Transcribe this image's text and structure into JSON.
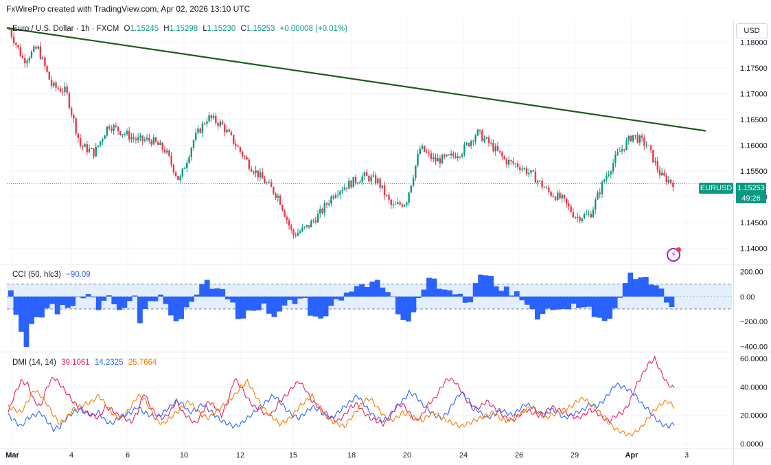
{
  "header": {
    "text": "FxWirePro created with TradingView.com, Apr 02, 2026 13:10 UTC"
  },
  "currency_button": "USD",
  "colors": {
    "up": "#089981",
    "down": "#f23645",
    "trendline": "#1e5a1e",
    "cci": "#2962ff",
    "cci_band": "#e3effd",
    "dmi_plus": "#e91e63",
    "dmi_minus": "#2962ff",
    "adx": "#f57c00",
    "badge": "#089981"
  },
  "main_legend": {
    "symbol": "Euro / U.S. Dollar · 1h · FXCM",
    "o_label": "O",
    "o": "1.15245",
    "h_label": "H",
    "h": "1.15298",
    "l_label": "L",
    "l": "1.15230",
    "c_label": "C",
    "c": "1.15253",
    "change": "+0.00008 (+0.01%)"
  },
  "price_badge": {
    "symbol": "EURUSD",
    "price": "1.15253",
    "countdown": "49:26"
  },
  "cci_legend": {
    "name": "CCI (50, hlc3)",
    "value": "−90.09"
  },
  "dmi_legend": {
    "name": "DMI (14, 14)",
    "plus": "39.1061",
    "minus": "14.2325",
    "adx": "25.7664"
  },
  "chart_data": [
    {
      "type": "candlestick",
      "title": "Euro / U.S. Dollar · 1h · FXCM",
      "ylim": [
        1.1375,
        1.1845
      ],
      "y_ticks": [
        "1.18000",
        "1.17500",
        "1.17000",
        "1.16500",
        "1.16000",
        "1.15500",
        "1.15000",
        "1.14500",
        "1.14000"
      ],
      "x_ticks": [
        "Mar",
        "4",
        "6",
        "10",
        "12",
        "15",
        "18",
        "20",
        "24",
        "26",
        "29",
        "Apr",
        "3"
      ],
      "close_path": [
        [
          "Mar",
          1.1825
        ],
        [
          "Mar",
          1.1765
        ],
        [
          "Mar",
          1.179
        ],
        [
          "Mar",
          1.1715
        ],
        [
          "Mar",
          1.1705
        ],
        [
          "4",
          1.16
        ],
        [
          "4",
          1.1585
        ],
        [
          "4",
          1.164
        ],
        [
          "4",
          1.1625
        ],
        [
          "6",
          1.161
        ],
        [
          "6",
          1.161
        ],
        [
          "6",
          1.159
        ],
        [
          "6",
          1.153
        ],
        [
          "10",
          1.161
        ],
        [
          "10",
          1.1655
        ],
        [
          "10",
          1.164
        ],
        [
          "10",
          1.16
        ],
        [
          "12",
          1.156
        ],
        [
          "12",
          1.153
        ],
        [
          "12",
          1.15
        ],
        [
          "15",
          1.1425
        ],
        [
          "15",
          1.144
        ],
        [
          "15",
          1.147
        ],
        [
          "15",
          1.151
        ],
        [
          "18",
          1.1525
        ],
        [
          "18",
          1.154
        ],
        [
          "18",
          1.153
        ],
        [
          "20",
          1.148
        ],
        [
          "20",
          1.149
        ],
        [
          "20",
          1.1595
        ],
        [
          "20",
          1.157
        ],
        [
          "24",
          1.1575
        ],
        [
          "24",
          1.159
        ],
        [
          "24",
          1.1625
        ],
        [
          "24",
          1.16
        ],
        [
          "26",
          1.157
        ],
        [
          "26",
          1.156
        ],
        [
          "26",
          1.154
        ],
        [
          "29",
          1.151
        ],
        [
          "29",
          1.1495
        ],
        [
          "29",
          1.146
        ],
        [
          "Apr",
          1.1465
        ],
        [
          "Apr",
          1.1535
        ],
        [
          "Apr",
          1.1585
        ],
        [
          "Apr",
          1.162
        ],
        [
          "Apr",
          1.16
        ],
        [
          "Apr",
          1.154
        ],
        [
          "Apr",
          1.1525
        ]
      ],
      "trendline": [
        [
          "Mar",
          1.1828
        ],
        [
          "3",
          1.1628
        ]
      ],
      "last_price": 1.15253
    },
    {
      "type": "area",
      "title": "CCI (50, hlc3)",
      "ylim": [
        -420,
        230
      ],
      "y_ticks": [
        "200.00",
        "0.00",
        "−200.00",
        "−400.00"
      ],
      "bands": [
        100,
        -100
      ],
      "values": [
        80,
        -140,
        -300,
        -380,
        -220,
        -190,
        -150,
        -100,
        -90,
        -130,
        -80,
        -60,
        -70,
        -20,
        10,
        20,
        -30,
        -90,
        -40,
        -20,
        -50,
        -120,
        -60,
        -30,
        -10,
        -190,
        -100,
        -60,
        -20,
        10,
        -90,
        -140,
        -210,
        -150,
        -80,
        -60,
        40,
        100,
        110,
        80,
        60,
        30,
        -10,
        -60,
        -150,
        -170,
        -130,
        -90,
        -110,
        -80,
        -120,
        -170,
        -150,
        -60,
        -40,
        -30,
        -10,
        -30,
        -130,
        -160,
        -200,
        -140,
        -80,
        -50,
        -20,
        20,
        70,
        90,
        80,
        100,
        120,
        110,
        90,
        30,
        -30,
        -130,
        -200,
        -170,
        -120,
        -30,
        80,
        150,
        120,
        80,
        50,
        20,
        30,
        10,
        -20,
        -40,
        90,
        200,
        170,
        140,
        100,
        40,
        50,
        20,
        30,
        0,
        -60,
        -120,
        -160,
        -140,
        -120,
        -90,
        -110,
        -130,
        -90,
        -70,
        -60,
        -80,
        -100,
        -140,
        -170,
        -220,
        -160,
        -100,
        -40,
        120,
        180,
        170,
        160,
        140,
        120,
        90,
        40,
        -30,
        -90
      ]
    },
    {
      "type": "line",
      "title": "DMI (14, 14)",
      "ylim": [
        -2,
        62
      ],
      "y_ticks": [
        "60.0000",
        "40.0000",
        "20.0000",
        "0.0000"
      ],
      "series": [
        {
          "name": "39.1061",
          "values": [
            22,
            35,
            44,
            42,
            30,
            26,
            40,
            47,
            42,
            36,
            30,
            25,
            22,
            20,
            18,
            26,
            24,
            20,
            18,
            15,
            22,
            36,
            26,
            20,
            18,
            22,
            30,
            22,
            18,
            14,
            22,
            30,
            26,
            20,
            30,
            46,
            40,
            32,
            26,
            24,
            20,
            22,
            30,
            34,
            40,
            44,
            38,
            30,
            26,
            22,
            18,
            16,
            20,
            26,
            28,
            22,
            18,
            16,
            14,
            18,
            26,
            28,
            22,
            16,
            20,
            28,
            32,
            40,
            46,
            44,
            38,
            30,
            24,
            26,
            30,
            26,
            22,
            18,
            16,
            20,
            24,
            22,
            20,
            22,
            26,
            24,
            22,
            20,
            18,
            20,
            24,
            22,
            18,
            16,
            20,
            22,
            28,
            40,
            48,
            56,
            60,
            50,
            42,
            39
          ]
        },
        {
          "name": "14.2325",
          "values": [
            20,
            16,
            12,
            18,
            20,
            22,
            16,
            10,
            12,
            18,
            22,
            24,
            22,
            20,
            22,
            16,
            14,
            18,
            20,
            22,
            26,
            22,
            20,
            18,
            22,
            26,
            30,
            28,
            22,
            24,
            28,
            24,
            20,
            16,
            14,
            12,
            14,
            18,
            22,
            26,
            30,
            34,
            30,
            24,
            20,
            18,
            22,
            26,
            24,
            20,
            18,
            22,
            26,
            30,
            34,
            28,
            22,
            18,
            16,
            20,
            26,
            30,
            36,
            34,
            28,
            24,
            20,
            18,
            22,
            30,
            36,
            32,
            26,
            22,
            18,
            20,
            24,
            22,
            20,
            24,
            28,
            26,
            22,
            20,
            24,
            22,
            18,
            20,
            22,
            24,
            28,
            26,
            30,
            36,
            42,
            40,
            38,
            34,
            28,
            24,
            18,
            14,
            12,
            14
          ]
        },
        {
          "name": "25.7664",
          "values": [
            26,
            24,
            22,
            30,
            38,
            34,
            28,
            20,
            14,
            18,
            24,
            26,
            28,
            30,
            34,
            28,
            22,
            18,
            20,
            26,
            34,
            32,
            24,
            16,
            14,
            18,
            22,
            26,
            30,
            24,
            20,
            18,
            22,
            26,
            30,
            34,
            40,
            44,
            36,
            28,
            22,
            18,
            14,
            16,
            20,
            26,
            30,
            34,
            26,
            20,
            16,
            14,
            12,
            18,
            24,
            30,
            32,
            26,
            20,
            16,
            18,
            22,
            20,
            18,
            16,
            20,
            22,
            18,
            16,
            14,
            12,
            14,
            16,
            18,
            20,
            22,
            18,
            16,
            18,
            20,
            24,
            26,
            22,
            18,
            20,
            22,
            24,
            26,
            30,
            32,
            28,
            24,
            20,
            14,
            10,
            8,
            6,
            8,
            12,
            18,
            24,
            28,
            30,
            26
          ]
        }
      ]
    }
  ]
}
